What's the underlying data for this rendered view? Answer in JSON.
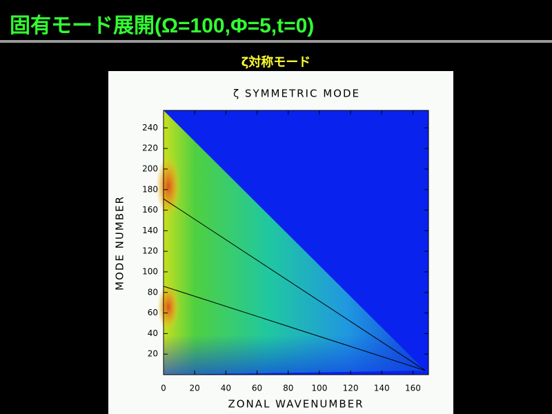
{
  "slide": {
    "title": "固有モード展開(Ω=100,Φ=5,t=0)",
    "subtitle": "ζ対称モード"
  },
  "chart_data": {
    "type": "line",
    "title": "ζ SYMMETRIC MODE",
    "x_label": "ZONAL WAVENUMBER",
    "y_label": "MODE NUMBER",
    "x": [
      0,
      168
    ],
    "series": [
      {
        "color": "#000000",
        "values": [
          171,
          4
        ]
      },
      {
        "color": "#000000",
        "values": [
          86,
          4
        ]
      }
    ],
    "xlim": [
      0,
      170
    ],
    "ylim": [
      0,
      257
    ],
    "xticks": [
      0,
      20,
      40,
      60,
      80,
      100,
      120,
      140,
      160
    ],
    "yticks": [
      20,
      40,
      60,
      80,
      100,
      120,
      140,
      160,
      180,
      200,
      220,
      240
    ]
  }
}
